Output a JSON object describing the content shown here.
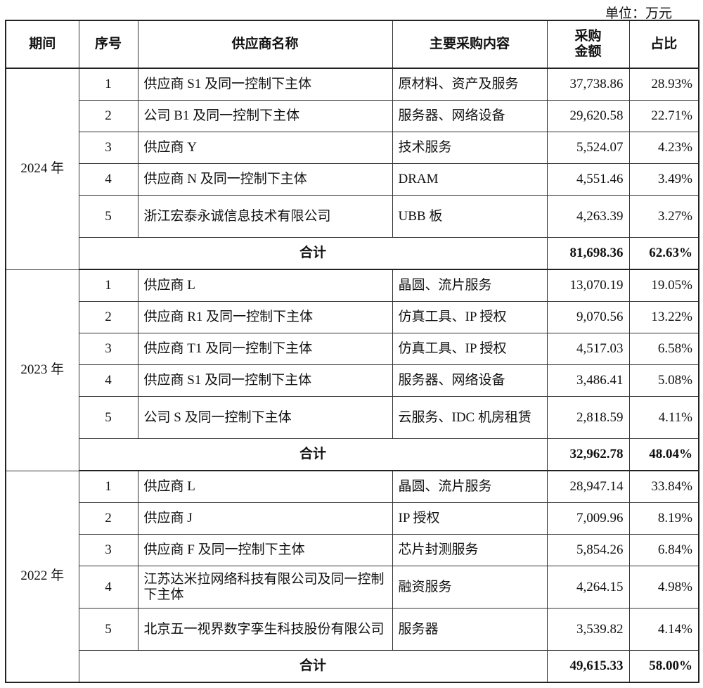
{
  "unit_label": "单位：万元",
  "headers": [
    "期间",
    "序号",
    "供应商名称",
    "主要采购内容",
    "采购\n金额",
    "占比"
  ],
  "groups": [
    {
      "period": "2024 年",
      "rows": [
        {
          "no": "1",
          "name": "供应商 S1 及同一控制下主体",
          "content": "原材料、资产及服务",
          "amount": "37,738.86",
          "pct": "28.93%"
        },
        {
          "no": "2",
          "name": "公司 B1 及同一控制下主体",
          "content": "服务器、网络设备",
          "amount": "29,620.58",
          "pct": "22.71%"
        },
        {
          "no": "3",
          "name": "供应商 Y",
          "content": "技术服务",
          "amount": "5,524.07",
          "pct": "4.23%"
        },
        {
          "no": "4",
          "name": "供应商 N 及同一控制下主体",
          "content": "DRAM",
          "amount": "4,551.46",
          "pct": "3.49%"
        },
        {
          "no": "5",
          "name": "浙江宏泰永诚信息技术有限公司",
          "content": "UBB 板",
          "amount": "4,263.39",
          "pct": "3.27%"
        }
      ],
      "total_label": "合计",
      "total_amount": "81,698.36",
      "total_pct": "62.63%"
    },
    {
      "period": "2023 年",
      "rows": [
        {
          "no": "1",
          "name": "供应商 L",
          "content": "晶圆、流片服务",
          "amount": "13,070.19",
          "pct": "19.05%"
        },
        {
          "no": "2",
          "name": "供应商 R1 及同一控制下主体",
          "content": "仿真工具、IP 授权",
          "amount": "9,070.56",
          "pct": "13.22%"
        },
        {
          "no": "3",
          "name": "供应商 T1 及同一控制下主体",
          "content": "仿真工具、IP 授权",
          "amount": "4,517.03",
          "pct": "6.58%"
        },
        {
          "no": "4",
          "name": "供应商 S1 及同一控制下主体",
          "content": "服务器、网络设备",
          "amount": "3,486.41",
          "pct": "5.08%"
        },
        {
          "no": "5",
          "name": "公司 S 及同一控制下主体",
          "content": "云服务、IDC 机房租赁",
          "amount": "2,818.59",
          "pct": "4.11%"
        }
      ],
      "total_label": "合计",
      "total_amount": "32,962.78",
      "total_pct": "48.04%"
    },
    {
      "period": "2022 年",
      "rows": [
        {
          "no": "1",
          "name": "供应商 L",
          "content": "晶圆、流片服务",
          "amount": "28,947.14",
          "pct": "33.84%"
        },
        {
          "no": "2",
          "name": "供应商 J",
          "content": "IP 授权",
          "amount": "7,009.96",
          "pct": "8.19%"
        },
        {
          "no": "3",
          "name": "供应商 F 及同一控制下主体",
          "content": "芯片封测服务",
          "amount": "5,854.26",
          "pct": "6.84%"
        },
        {
          "no": "4",
          "name": "江苏达米拉网络科技有限公司及同一控制下主体",
          "content": "融资服务",
          "amount": "4,264.15",
          "pct": "4.98%"
        },
        {
          "no": "5",
          "name": "北京五一视界数字孪生科技股份有限公司",
          "content": "服务器",
          "amount": "3,539.82",
          "pct": "4.14%"
        }
      ],
      "total_label": "合计",
      "total_amount": "49,615.33",
      "total_pct": "58.00%"
    }
  ]
}
